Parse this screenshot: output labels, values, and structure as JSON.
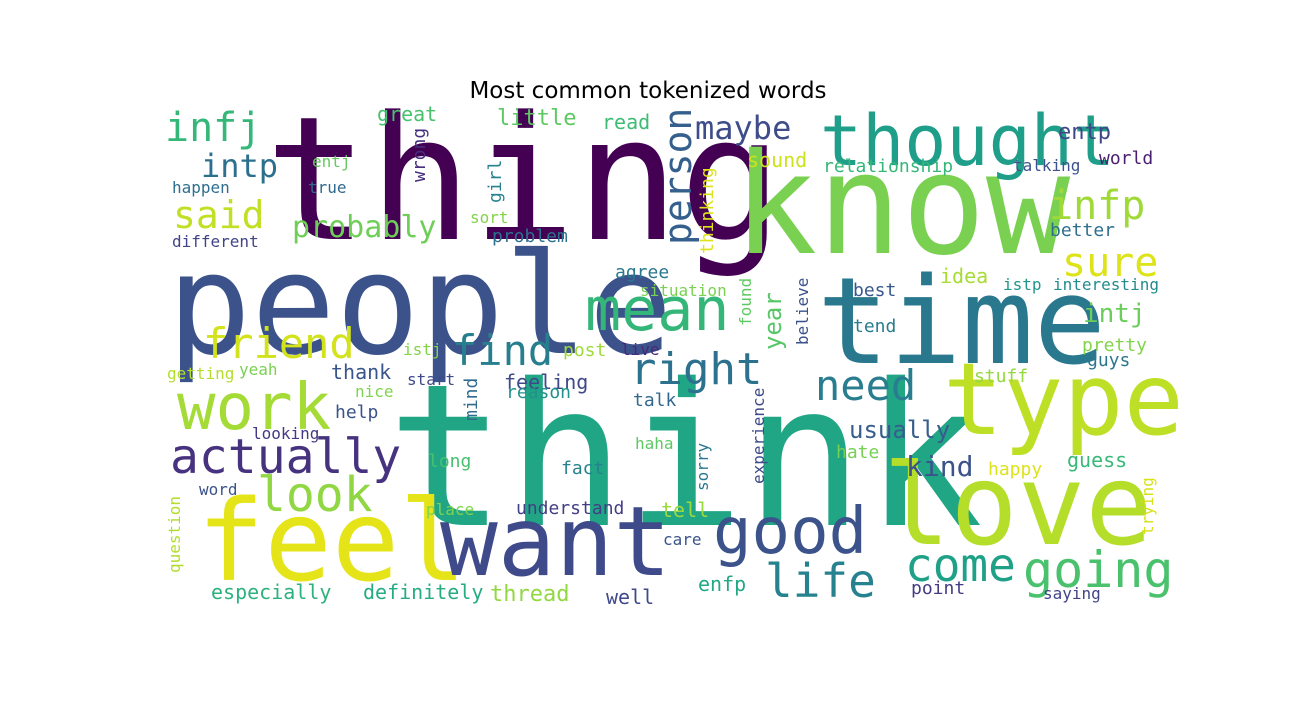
{
  "title": "Most common tokenized words",
  "palette": "viridis",
  "words": [
    {
      "text": "thing",
      "color": "#440154"
    },
    {
      "text": "people",
      "color": "#3b528b"
    },
    {
      "text": "think",
      "color": "#21a685"
    },
    {
      "text": "know",
      "color": "#7ad151"
    },
    {
      "text": "time",
      "color": "#2a788e"
    },
    {
      "text": "type",
      "color": "#bddf26"
    },
    {
      "text": "love",
      "color": "#b5de2b"
    },
    {
      "text": "feel",
      "color": "#e5e419"
    },
    {
      "text": "want",
      "color": "#3e4a89"
    },
    {
      "text": "thought",
      "color": "#1f9e89"
    },
    {
      "text": "work",
      "color": "#a5db36"
    },
    {
      "text": "actually",
      "color": "#46327e"
    },
    {
      "text": "good",
      "color": "#3b528b"
    },
    {
      "text": "mean",
      "color": "#34b679"
    },
    {
      "text": "look",
      "color": "#90d743"
    },
    {
      "text": "going",
      "color": "#4ac16d"
    },
    {
      "text": "come",
      "color": "#1fa187"
    },
    {
      "text": "life",
      "color": "#26828e"
    },
    {
      "text": "person",
      "color": "#355f8d"
    },
    {
      "text": "right",
      "color": "#2c728e"
    },
    {
      "text": "need",
      "color": "#287d8e"
    },
    {
      "text": "find",
      "color": "#277f8e"
    },
    {
      "text": "friend",
      "color": "#d2e21b"
    },
    {
      "text": "infj",
      "color": "#35b779"
    },
    {
      "text": "infp",
      "color": "#a0da39"
    },
    {
      "text": "sure",
      "color": "#dde318"
    },
    {
      "text": "said",
      "color": "#c0df25"
    },
    {
      "text": "maybe",
      "color": "#3e4c8a"
    },
    {
      "text": "intp",
      "color": "#2d708e"
    },
    {
      "text": "entp",
      "color": "#3f4788"
    },
    {
      "text": "intj",
      "color": "#6ccd5a"
    },
    {
      "text": "probably",
      "color": "#6ece58"
    },
    {
      "text": "kind",
      "color": "#3b528b"
    },
    {
      "text": "year",
      "color": "#56c667"
    },
    {
      "text": "usually",
      "color": "#365d8d"
    },
    {
      "text": "little",
      "color": "#5ec962"
    },
    {
      "text": "great",
      "color": "#48c16e"
    },
    {
      "text": "read",
      "color": "#3dbc74"
    },
    {
      "text": "sound",
      "color": "#cde11d"
    },
    {
      "text": "relationship",
      "color": "#35b779"
    },
    {
      "text": "world",
      "color": "#481f70"
    },
    {
      "text": "talking",
      "color": "#3b528b"
    },
    {
      "text": "wrong",
      "color": "#472f7d"
    },
    {
      "text": "girl",
      "color": "#26828e"
    },
    {
      "text": "entj",
      "color": "#63cb5f"
    },
    {
      "text": "true",
      "color": "#306a8e"
    },
    {
      "text": "happen",
      "color": "#2e6e8e"
    },
    {
      "text": "thinking",
      "color": "#dde318"
    },
    {
      "text": "sort",
      "color": "#84d44b"
    },
    {
      "text": "problem",
      "color": "#2d708e"
    },
    {
      "text": "better",
      "color": "#2e6f8e"
    },
    {
      "text": "different",
      "color": "#414487"
    },
    {
      "text": "idea",
      "color": "#a8db34"
    },
    {
      "text": "agree",
      "color": "#2a788e"
    },
    {
      "text": "situation",
      "color": "#7ad151"
    },
    {
      "text": "found",
      "color": "#5ec962"
    },
    {
      "text": "best",
      "color": "#38588c"
    },
    {
      "text": "istp",
      "color": "#1f988b"
    },
    {
      "text": "interesting",
      "color": "#228c8d"
    },
    {
      "text": "tend",
      "color": "#287d8e"
    },
    {
      "text": "believe",
      "color": "#3b528b"
    },
    {
      "text": "post",
      "color": "#9fda3a"
    },
    {
      "text": "live",
      "color": "#482878"
    },
    {
      "text": "istj",
      "color": "#84d44b"
    },
    {
      "text": "pretty",
      "color": "#84d44b"
    },
    {
      "text": "guys",
      "color": "#2a778e"
    },
    {
      "text": "thank",
      "color": "#39558c"
    },
    {
      "text": "getting",
      "color": "#b5de2b"
    },
    {
      "text": "yeah",
      "color": "#7ad151"
    },
    {
      "text": "feeling",
      "color": "#3e4989"
    },
    {
      "text": "stuff",
      "color": "#95d840"
    },
    {
      "text": "nice",
      "color": "#7fd34e"
    },
    {
      "text": "start",
      "color": "#3e4a89"
    },
    {
      "text": "mind",
      "color": "#2f6c8e"
    },
    {
      "text": "reason",
      "color": "#21918c"
    },
    {
      "text": "talk",
      "color": "#31688e"
    },
    {
      "text": "help",
      "color": "#3b528b"
    },
    {
      "text": "experience",
      "color": "#3e4a89"
    },
    {
      "text": "looking",
      "color": "#443983"
    },
    {
      "text": "haha",
      "color": "#5ec962"
    },
    {
      "text": "hate",
      "color": "#75d054"
    },
    {
      "text": "guess",
      "color": "#38b977"
    },
    {
      "text": "long",
      "color": "#46c06f"
    },
    {
      "text": "fact",
      "color": "#26828e"
    },
    {
      "text": "sorry",
      "color": "#2a788e"
    },
    {
      "text": "happy",
      "color": "#dde318"
    },
    {
      "text": "word",
      "color": "#3b528b"
    },
    {
      "text": "place",
      "color": "#7fd34e"
    },
    {
      "text": "understand",
      "color": "#433e85"
    },
    {
      "text": "tell",
      "color": "#9bd93c"
    },
    {
      "text": "question",
      "color": "#b2dd2d"
    },
    {
      "text": "trying",
      "color": "#d8e219"
    },
    {
      "text": "care",
      "color": "#3a538b"
    },
    {
      "text": "especially",
      "color": "#2db27d"
    },
    {
      "text": "definitely",
      "color": "#25ac82"
    },
    {
      "text": "thread",
      "color": "#93d741"
    },
    {
      "text": "well",
      "color": "#3e4a89"
    },
    {
      "text": "enfp",
      "color": "#22a884"
    },
    {
      "text": "point",
      "color": "#443b84"
    },
    {
      "text": "saying",
      "color": "#414487"
    }
  ]
}
